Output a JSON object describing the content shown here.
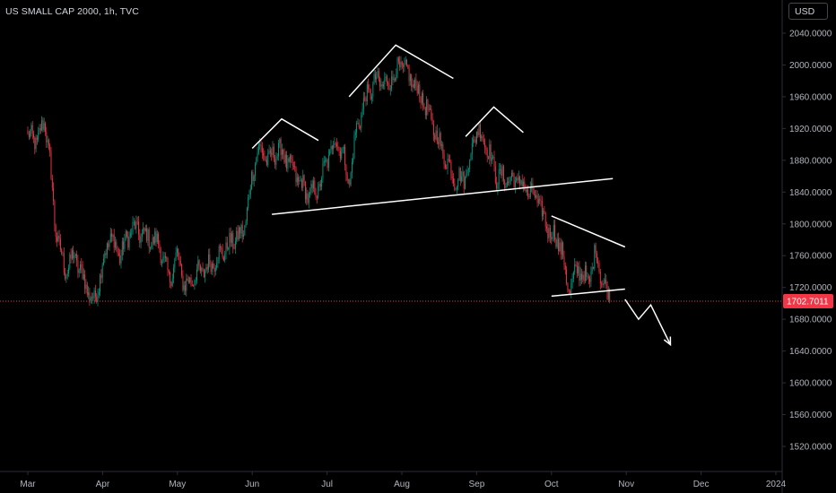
{
  "header": {
    "title": "US SMALL CAP 2000, 1h, TVC",
    "currency_label": "USD"
  },
  "colors": {
    "background": "#000000",
    "up": "#089981",
    "down": "#f23645",
    "drawing": "#ffffff",
    "last_price_bg": "#f23645",
    "axis_text": "#b2b5be",
    "axis_line": "#2a2e39"
  },
  "chart_data": {
    "type": "candlestick",
    "title": "US SMALL CAP 2000, 1h, TVC",
    "ylim": [
      1500,
      2060
    ],
    "y_ticks": [
      "2040.0000",
      "2000.0000",
      "1960.0000",
      "1920.0000",
      "1880.0000",
      "1840.0000",
      "1800.0000",
      "1760.0000",
      "1720.0000",
      "1680.0000",
      "1640.0000",
      "1600.0000",
      "1560.0000",
      "1520.0000"
    ],
    "x_ticks": [
      "Mar",
      "Apr",
      "May",
      "Jun",
      "Jul",
      "Aug",
      "Sep",
      "Oct",
      "Nov",
      "Dec",
      "2024"
    ],
    "last_price": "1702.7011",
    "price_path": [
      [
        "Mar 1",
        1910
      ],
      [
        "Mar 5",
        1905
      ],
      [
        "Mar 8",
        1930
      ],
      [
        "Mar 10",
        1880
      ],
      [
        "Mar 12",
        1800
      ],
      [
        "Mar 16",
        1740
      ],
      [
        "Mar 20",
        1760
      ],
      [
        "Mar 25",
        1720
      ],
      [
        "Mar 28",
        1700
      ],
      [
        "Apr 1",
        1750
      ],
      [
        "Apr 4",
        1785
      ],
      [
        "Apr 8",
        1760
      ],
      [
        "Apr 13",
        1795
      ],
      [
        "Apr 18",
        1785
      ],
      [
        "Apr 24",
        1775
      ],
      [
        "Apr 28",
        1730
      ],
      [
        "May 1",
        1760
      ],
      [
        "May 4",
        1720
      ],
      [
        "May 8",
        1735
      ],
      [
        "May 13",
        1745
      ],
      [
        "May 18",
        1760
      ],
      [
        "May 24",
        1780
      ],
      [
        "May 28",
        1790
      ],
      [
        "Jun 1",
        1860
      ],
      [
        "Jun 3",
        1895
      ],
      [
        "Jun 8",
        1880
      ],
      [
        "Jun 12",
        1895
      ],
      [
        "Jun 18",
        1865
      ],
      [
        "Jun 24",
        1835
      ],
      [
        "Jun 28",
        1845
      ],
      [
        "Jul 1",
        1880
      ],
      [
        "Jul 4",
        1905
      ],
      [
        "Jul 7",
        1895
      ],
      [
        "Jul 10",
        1850
      ],
      [
        "Jul 13",
        1920
      ],
      [
        "Jul 17",
        1960
      ],
      [
        "Jul 21",
        1980
      ],
      [
        "Jul 25",
        1975
      ],
      [
        "Jul 29",
        1990
      ],
      [
        "Aug 1",
        2000
      ],
      [
        "Aug 4",
        1985
      ],
      [
        "Aug 9",
        1960
      ],
      [
        "Aug 14",
        1920
      ],
      [
        "Aug 19",
        1880
      ],
      [
        "Aug 23",
        1855
      ],
      [
        "Aug 27",
        1860
      ],
      [
        "Sep 1",
        1920
      ],
      [
        "Sep 5",
        1900
      ],
      [
        "Sep 9",
        1860
      ],
      [
        "Sep 14",
        1855
      ],
      [
        "Sep 18",
        1855
      ],
      [
        "Sep 22",
        1840
      ],
      [
        "Sep 26",
        1830
      ],
      [
        "Sep 29",
        1800
      ],
      [
        "Oct 2",
        1785
      ],
      [
        "Oct 5",
        1770
      ],
      [
        "Oct 8",
        1715
      ],
      [
        "Oct 12",
        1745
      ],
      [
        "Oct 16",
        1725
      ],
      [
        "Oct 19",
        1765
      ],
      [
        "Oct 22",
        1725
      ],
      [
        "Oct 25",
        1702.7
      ]
    ],
    "drawings": [
      {
        "name": "left-shoulder-cap",
        "points": [
          [
            "Jun 1",
            1895
          ],
          [
            "Jun 13",
            1932
          ],
          [
            "Jun 28",
            1905
          ]
        ]
      },
      {
        "name": "head-cap",
        "points": [
          [
            "Jul 10",
            1960
          ],
          [
            "Jul 29",
            2025
          ],
          [
            "Aug 22",
            1983
          ]
        ]
      },
      {
        "name": "right-shoulder-cap",
        "points": [
          [
            "Aug 27",
            1910
          ],
          [
            "Sep 8",
            1947
          ],
          [
            "Sep 20",
            1915
          ]
        ]
      },
      {
        "name": "neckline",
        "points": [
          [
            "Jun 9",
            1812
          ],
          [
            "Oct 26",
            1857
          ]
        ]
      },
      {
        "name": "falling-wedge-top",
        "points": [
          [
            "Oct 1",
            1810
          ],
          [
            "Oct 31",
            1771
          ]
        ]
      },
      {
        "name": "falling-wedge-bottom",
        "points": [
          [
            "Oct 1",
            1709
          ],
          [
            "Oct 31",
            1718
          ]
        ]
      },
      {
        "name": "projection-arrow",
        "points": [
          [
            "Oct 31",
            1705
          ],
          [
            "Nov 6",
            1680
          ],
          [
            "Nov 11",
            1698
          ],
          [
            "Nov 19",
            1648
          ]
        ]
      }
    ]
  }
}
